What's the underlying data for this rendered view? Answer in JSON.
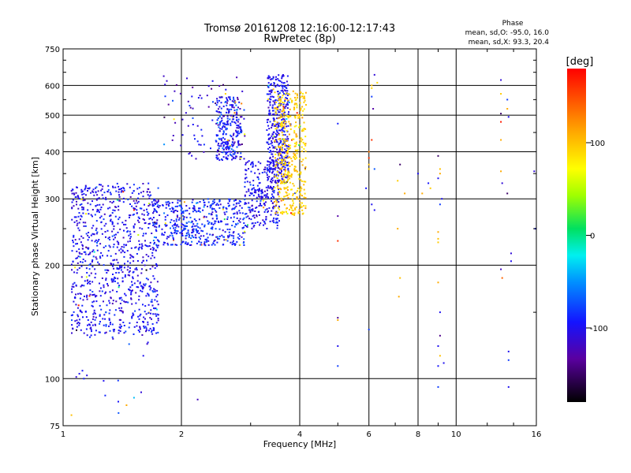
{
  "chart_data": {
    "type": "scatter",
    "title": "Tromsø 20161208 12:16:00-12:17:43",
    "subtitle": "RwPretec (8p)",
    "xlabel": "Frequency [MHz]",
    "ylabel": "Stationary phase Virtual Height [km]",
    "xscale": "log",
    "yscale": "log",
    "xlim": [
      1,
      16
    ],
    "ylim": [
      75,
      750
    ],
    "xticks": [
      {
        "value": 1,
        "label": "1"
      },
      {
        "value": 2,
        "label": "2"
      },
      {
        "value": 4,
        "label": "4"
      },
      {
        "value": 6,
        "label": "6"
      },
      {
        "value": 8,
        "label": "8"
      },
      {
        "value": 10,
        "label": "10"
      },
      {
        "value": 16,
        "label": "16"
      }
    ],
    "yticks": [
      {
        "value": 75,
        "label": "75"
      },
      {
        "value": 100,
        "label": "100"
      },
      {
        "value": 200,
        "label": "200"
      },
      {
        "value": 300,
        "label": "300"
      },
      {
        "value": 400,
        "label": "400"
      },
      {
        "value": 500,
        "label": "500"
      },
      {
        "value": 600,
        "label": "600"
      },
      {
        "value": 750,
        "label": "750"
      }
    ],
    "grid": true,
    "phase_info": {
      "title": "Phase",
      "line_o": "mean, sd,O: -95.0, 16.0",
      "line_x": "mean, sd,X:  93.3, 20.4"
    },
    "colorbar": {
      "label": "[deg]",
      "range": [
        -180,
        180
      ],
      "ticks": [
        {
          "value": 100,
          "label": "100"
        },
        {
          "value": 0,
          "label": "0"
        },
        {
          "value": -100,
          "label": "-100"
        }
      ]
    },
    "point_groups": [
      {
        "desc": "low cluster",
        "x": [
          1.05,
          1.75
        ],
        "y": [
          130,
          330
        ],
        "n": 900,
        "phase": [
          -100,
          12
        ]
      },
      {
        "desc": "mid band",
        "x": [
          1.7,
          2.9
        ],
        "y": [
          225,
          300
        ],
        "n": 450,
        "phase": [
          -90,
          15
        ]
      },
      {
        "desc": "ramp",
        "x": [
          2.9,
          3.55
        ],
        "y": [
          250,
          380
        ],
        "n": 260,
        "phase": [
          -100,
          12
        ]
      },
      {
        "desc": "upper cluster A",
        "x": [
          2.45,
          2.85
        ],
        "y": [
          380,
          560
        ],
        "n": 260,
        "phase": [
          -95,
          15
        ]
      },
      {
        "desc": "upper cluster B",
        "x": [
          3.3,
          3.75
        ],
        "y": [
          330,
          640
        ],
        "n": 420,
        "phase": [
          -100,
          10
        ]
      },
      {
        "desc": "X trace",
        "x": [
          3.45,
          4.15
        ],
        "y": [
          270,
          580
        ],
        "n": 420,
        "phase": [
          95,
          12
        ]
      },
      {
        "desc": "scattered upper",
        "x": [
          1.8,
          2.9
        ],
        "y": [
          380,
          640
        ],
        "n": 90,
        "phase": [
          -110,
          20
        ]
      },
      {
        "desc": "scattered low",
        "x": [
          1.08,
          1.75
        ],
        "y": [
          80,
          140
        ],
        "n": 14,
        "phase": [
          -100,
          30
        ]
      }
    ],
    "points": [
      [
        1.1,
        103,
        -100
      ],
      [
        1.12,
        105,
        -95
      ],
      [
        1.15,
        102,
        -105
      ],
      [
        1.13,
        100,
        -90
      ],
      [
        1.08,
        101,
        -110
      ],
      [
        1.05,
        80,
        100
      ],
      [
        1.45,
        85,
        110
      ],
      [
        1.58,
        92,
        -110
      ],
      [
        1.6,
        115,
        -100
      ],
      [
        2.2,
        88,
        -120
      ],
      [
        5.0,
        475,
        -90
      ],
      [
        5.0,
        270,
        -130
      ],
      [
        5.0,
        232,
        160
      ],
      [
        5.0,
        145,
        -140
      ],
      [
        5.0,
        143,
        110
      ],
      [
        5.0,
        122,
        -100
      ],
      [
        5.0,
        108,
        -80
      ],
      [
        5.9,
        320,
        -95
      ],
      [
        6.1,
        290,
        -100
      ],
      [
        6.0,
        400,
        130
      ],
      [
        6.0,
        385,
        160
      ],
      [
        6.0,
        370,
        100
      ],
      [
        6.0,
        360,
        95
      ],
      [
        6.1,
        600,
        100
      ],
      [
        6.1,
        590,
        90
      ],
      [
        6.1,
        560,
        -80
      ],
      [
        6.1,
        430,
        160
      ],
      [
        6.15,
        520,
        -130
      ],
      [
        6.0,
        135,
        -80
      ],
      [
        6.2,
        640,
        -110
      ],
      [
        6.3,
        610,
        90
      ],
      [
        6.2,
        280,
        -100
      ],
      [
        6.2,
        360,
        -70
      ],
      [
        7.2,
        370,
        -150
      ],
      [
        7.1,
        250,
        110
      ],
      [
        7.2,
        185,
        100
      ],
      [
        7.15,
        165,
        110
      ],
      [
        7.4,
        310,
        110
      ],
      [
        7.1,
        335,
        95
      ],
      [
        8.0,
        350,
        -100
      ],
      [
        8.2,
        310,
        110
      ],
      [
        8.5,
        330,
        -95
      ],
      [
        8.6,
        320,
        95
      ],
      [
        9.0,
        390,
        -150
      ],
      [
        9.1,
        360,
        100
      ],
      [
        9.1,
        350,
        110
      ],
      [
        9.0,
        340,
        -100
      ],
      [
        9.2,
        300,
        -100
      ],
      [
        9.1,
        290,
        -80
      ],
      [
        9.0,
        245,
        110
      ],
      [
        9.0,
        235,
        100
      ],
      [
        9.0,
        230,
        95
      ],
      [
        9.0,
        180,
        110
      ],
      [
        9.1,
        150,
        -100
      ],
      [
        9.1,
        130,
        -140
      ],
      [
        9.0,
        122,
        -100
      ],
      [
        9.1,
        115,
        100
      ],
      [
        9.0,
        108,
        -95
      ],
      [
        9.0,
        95,
        -80
      ],
      [
        9.3,
        110,
        -100
      ],
      [
        13.0,
        620,
        -110
      ],
      [
        13.0,
        570,
        95
      ],
      [
        13.0,
        505,
        -150
      ],
      [
        13.0,
        480,
        170
      ],
      [
        13.0,
        430,
        110
      ],
      [
        13.0,
        355,
        110
      ],
      [
        13.1,
        330,
        -110
      ],
      [
        13.0,
        195,
        -120
      ],
      [
        13.1,
        185,
        140
      ],
      [
        13.5,
        550,
        -80
      ],
      [
        13.5,
        520,
        110
      ],
      [
        13.6,
        495,
        -100
      ],
      [
        13.5,
        310,
        -150
      ],
      [
        13.8,
        215,
        -110
      ],
      [
        13.8,
        205,
        -100
      ],
      [
        13.6,
        118,
        -100
      ],
      [
        13.6,
        112,
        -80
      ],
      [
        13.6,
        95,
        -100
      ],
      [
        15.8,
        355,
        -110
      ],
      [
        15.9,
        250,
        -90
      ]
    ]
  }
}
